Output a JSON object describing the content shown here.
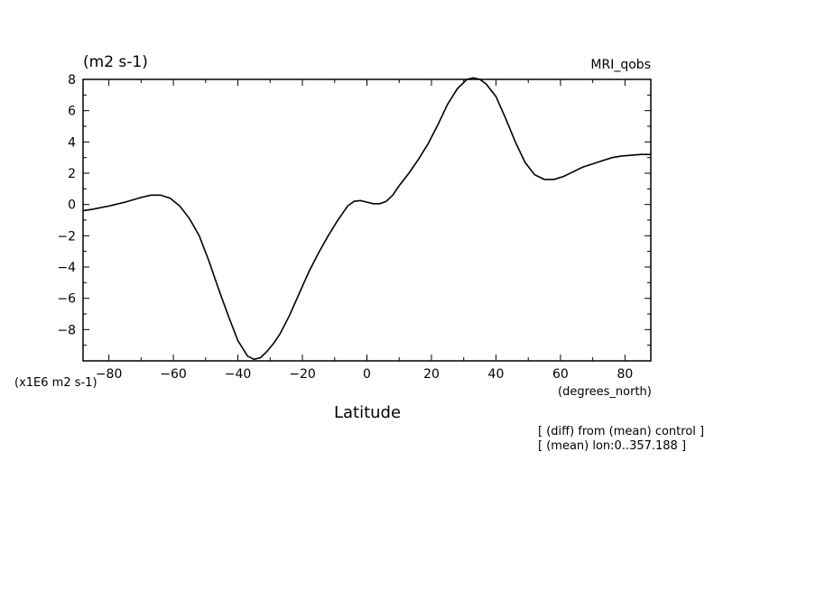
{
  "chart_data": {
    "type": "line",
    "title": "MRI_qobs",
    "units_label": "(m2 s-1)",
    "scale_label": "(x1E6 m2 s-1)",
    "xlabel": "Latitude",
    "xunits": "(degrees_north)",
    "notes": [
      "[ (diff) from (mean) control ]",
      "[ (mean) lon:0..357.188 ]"
    ],
    "xlim": [
      -88,
      88
    ],
    "ylim": [
      -10,
      8
    ],
    "xticks": [
      -80,
      -60,
      -40,
      -20,
      0,
      20,
      40,
      60,
      80
    ],
    "yticks": [
      8,
      6,
      4,
      2,
      0,
      -2,
      -4,
      -6,
      -8
    ],
    "grid": false,
    "series": [
      {
        "x": [
          -88,
          -85,
          -80,
          -75,
          -70,
          -67,
          -64,
          -61,
          -58,
          -55,
          -52,
          -49,
          -46,
          -43,
          -40,
          -37,
          -35,
          -33,
          -31,
          -29,
          -27,
          -24,
          -21,
          -18,
          -15,
          -12,
          -9,
          -6,
          -4,
          -2,
          0,
          2,
          4,
          6,
          8,
          10,
          13,
          16,
          19,
          22,
          25,
          28,
          31,
          33,
          35,
          37,
          40,
          43,
          46,
          49,
          52,
          55,
          58,
          61,
          64,
          67,
          70,
          73,
          76,
          79,
          82,
          85,
          88
        ],
        "y": [
          -0.4,
          -0.3,
          -0.1,
          0.15,
          0.45,
          0.6,
          0.6,
          0.4,
          -0.1,
          -0.9,
          -2.0,
          -3.6,
          -5.4,
          -7.1,
          -8.7,
          -9.7,
          -9.9,
          -9.8,
          -9.4,
          -8.9,
          -8.3,
          -7.1,
          -5.7,
          -4.3,
          -3.1,
          -2.0,
          -1.0,
          -0.1,
          0.2,
          0.25,
          0.15,
          0.05,
          0.05,
          0.2,
          0.6,
          1.2,
          2.0,
          2.9,
          3.9,
          5.1,
          6.4,
          7.4,
          8.0,
          8.1,
          8.0,
          7.7,
          6.9,
          5.5,
          4.0,
          2.7,
          1.9,
          1.6,
          1.6,
          1.8,
          2.1,
          2.4,
          2.6,
          2.8,
          3.0,
          3.1,
          3.15,
          3.2,
          3.2
        ]
      }
    ]
  }
}
